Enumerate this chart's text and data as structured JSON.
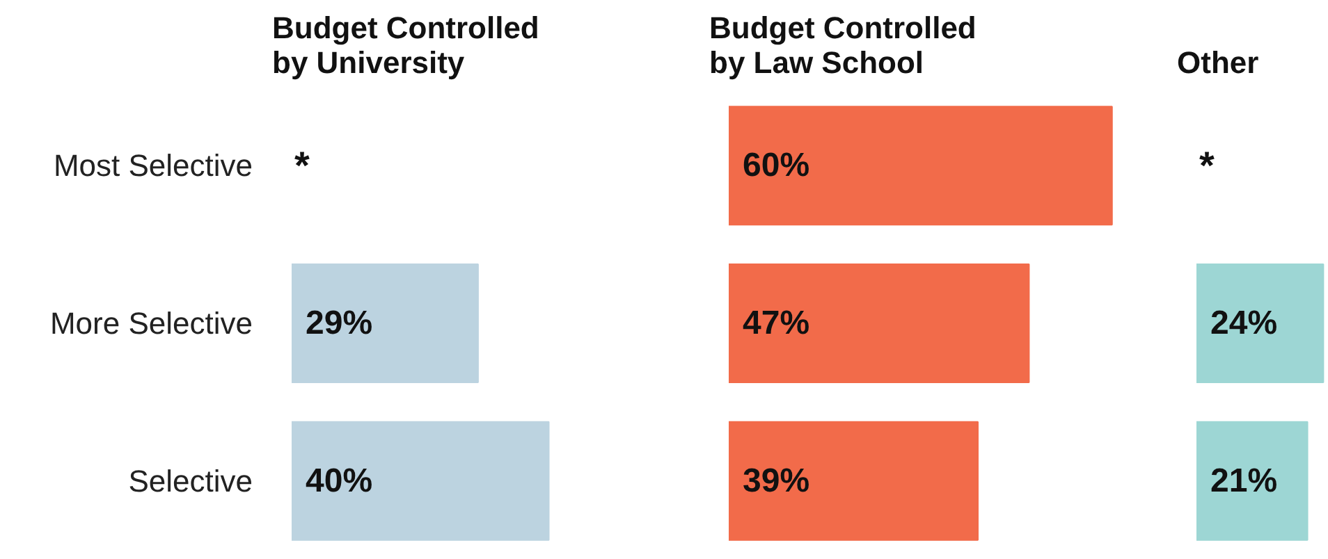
{
  "chart_data": [
    {
      "type": "bar",
      "orientation": "horizontal",
      "title": "Budget Controlled by University",
      "categories": [
        "Most Selective",
        "More Selective",
        "Selective"
      ],
      "values": [
        null,
        29,
        40
      ],
      "value_labels": [
        null,
        "29%",
        "40%"
      ],
      "color": "#bcd3e0",
      "tick_labels": "y",
      "grid": false,
      "annotations": [
        "*"
      ]
    },
    {
      "type": "bar",
      "orientation": "horizontal",
      "title": "Budget Controlled by Law School",
      "categories": [
        "Most Selective",
        "More Selective",
        "Selective"
      ],
      "values": [
        60,
        47,
        39
      ],
      "value_labels": [
        "60%",
        "47%",
        "39%"
      ],
      "color": "#f26b4a",
      "tick_labels": false,
      "grid": false
    },
    {
      "type": "bar",
      "orientation": "horizontal",
      "title": "Other",
      "categories": [
        "Most Selective",
        "More Selective",
        "Selective"
      ],
      "values": [
        null,
        24,
        21
      ],
      "value_labels": [
        null,
        "24%",
        "21%"
      ],
      "color": "#9dd6d4",
      "tick_labels": false,
      "grid": false,
      "annotations": [
        "*"
      ]
    }
  ]
}
